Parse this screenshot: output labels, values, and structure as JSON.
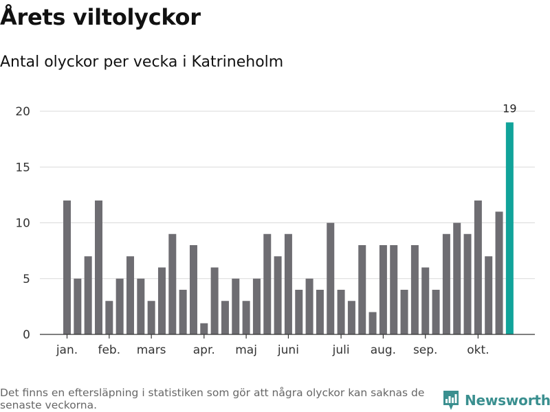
{
  "header": {
    "title": "Årets viltolyckor",
    "subtitle": "Antal olyckor per vecka i Katrineholm"
  },
  "footer": {
    "note": "Det finns en eftersläpning i statistiken som gör att några olyckor kan saknas de senaste veckorna.",
    "brand": "Newsworthy"
  },
  "colors": {
    "bar": "#6e6d72",
    "highlight": "#11a39a",
    "grid": "#d9d9d9",
    "axis": "#333333",
    "brand": "#3a8f8f"
  },
  "chart_data": {
    "type": "bar",
    "title": "Årets viltolyckor",
    "subtitle": "Antal olyckor per vecka i Katrineholm",
    "xlabel": "",
    "ylabel": "",
    "ylim": [
      0,
      20
    ],
    "yticks": [
      0,
      5,
      10,
      15,
      20
    ],
    "grid": true,
    "categories": [
      1,
      2,
      3,
      4,
      5,
      6,
      7,
      8,
      9,
      10,
      11,
      12,
      13,
      14,
      15,
      16,
      17,
      18,
      19,
      20,
      21,
      22,
      23,
      24,
      25,
      26,
      27,
      28,
      29,
      30,
      31,
      32,
      33,
      34,
      35,
      36,
      37,
      38,
      39,
      40,
      41,
      42,
      43
    ],
    "values": [
      12,
      5,
      7,
      12,
      3,
      5,
      7,
      5,
      3,
      6,
      9,
      4,
      8,
      1,
      6,
      3,
      5,
      3,
      5,
      9,
      7,
      9,
      4,
      5,
      4,
      10,
      4,
      3,
      8,
      2,
      8,
      8,
      4,
      8,
      6,
      4,
      9,
      10,
      9,
      12,
      7,
      11,
      19
    ],
    "highlight_index": 42,
    "highlight_label": "19",
    "month_labels": [
      {
        "label": "jan.",
        "category": 1
      },
      {
        "label": "feb.",
        "category": 5
      },
      {
        "label": "mars",
        "category": 9
      },
      {
        "label": "apr.",
        "category": 14
      },
      {
        "label": "maj",
        "category": 18
      },
      {
        "label": "juni",
        "category": 22
      },
      {
        "label": "juli",
        "category": 27
      },
      {
        "label": "aug.",
        "category": 31
      },
      {
        "label": "sep.",
        "category": 35
      },
      {
        "label": "okt.",
        "category": 40
      }
    ]
  }
}
